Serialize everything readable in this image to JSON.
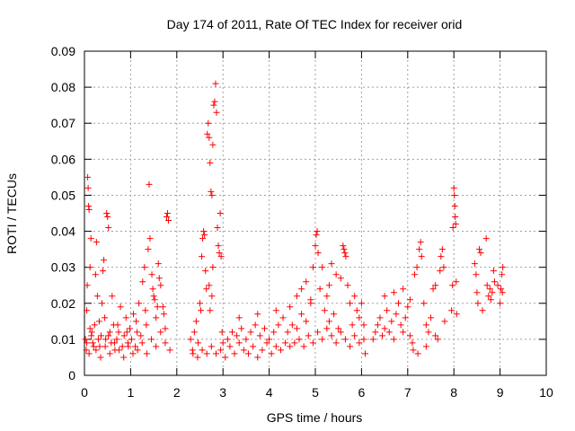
{
  "chart_data": {
    "type": "scatter",
    "title": "Day 174 of 2011, Rate Of TEC Index for receiver orid",
    "xlabel": "GPS time / hours",
    "ylabel": "ROTI / TECUs",
    "xlim": [
      0,
      10
    ],
    "ylim": [
      0,
      0.09
    ],
    "x_ticks": [
      "0",
      "1",
      "2",
      "3",
      "4",
      "5",
      "6",
      "7",
      "8",
      "9",
      "10"
    ],
    "y_ticks": [
      "0",
      "0.01",
      "0.02",
      "0.03",
      "0.04",
      "0.05",
      "0.06",
      "0.07",
      "0.08",
      "0.09"
    ],
    "grid": true,
    "marker": "+",
    "series_color": "#ff0000",
    "series": [
      {
        "name": "ROTI",
        "points": [
          [
            0.02,
            0.01
          ],
          [
            0.04,
            0.007
          ],
          [
            0.05,
            0.018
          ],
          [
            0.06,
            0.025
          ],
          [
            0.07,
            0.055
          ],
          [
            0.08,
            0.052
          ],
          [
            0.09,
            0.047
          ],
          [
            0.1,
            0.046
          ],
          [
            0.12,
            0.03
          ],
          [
            0.14,
            0.038
          ],
          [
            0.16,
            0.012
          ],
          [
            0.18,
            0.009
          ],
          [
            0.2,
            0.008
          ],
          [
            0.22,
            0.014
          ],
          [
            0.24,
            0.028
          ],
          [
            0.26,
            0.037
          ],
          [
            0.28,
            0.022
          ],
          [
            0.3,
            0.01
          ],
          [
            0.33,
            0.008
          ],
          [
            0.36,
            0.011
          ],
          [
            0.38,
            0.02
          ],
          [
            0.4,
            0.029
          ],
          [
            0.42,
            0.032
          ],
          [
            0.44,
            0.016
          ],
          [
            0.46,
            0.01
          ],
          [
            0.48,
            0.045
          ],
          [
            0.5,
            0.044
          ],
          [
            0.52,
            0.041
          ],
          [
            0.55,
            0.012
          ],
          [
            0.58,
            0.009
          ],
          [
            0.6,
            0.022
          ],
          [
            0.63,
            0.014
          ],
          [
            0.66,
            0.007
          ],
          [
            0.7,
            0.01
          ],
          [
            0.74,
            0.012
          ],
          [
            0.78,
            0.019
          ],
          [
            0.82,
            0.008
          ],
          [
            0.86,
            0.011
          ],
          [
            0.9,
            0.016
          ],
          [
            0.94,
            0.009
          ],
          [
            0.98,
            0.013
          ],
          [
            1.02,
            0.01
          ],
          [
            1.06,
            0.017
          ],
          [
            1.1,
            0.008
          ],
          [
            1.14,
            0.012
          ],
          [
            1.18,
            0.02
          ],
          [
            1.22,
            0.011
          ],
          [
            1.26,
            0.026
          ],
          [
            1.3,
            0.03
          ],
          [
            1.34,
            0.014
          ],
          [
            1.38,
            0.035
          ],
          [
            1.4,
            0.053
          ],
          [
            1.42,
            0.038
          ],
          [
            1.46,
            0.028
          ],
          [
            1.5,
            0.022
          ],
          [
            1.55,
            0.016
          ],
          [
            1.6,
            0.031
          ],
          [
            1.65,
            0.025
          ],
          [
            1.7,
            0.019
          ],
          [
            1.75,
            0.013
          ],
          [
            1.78,
            0.044
          ],
          [
            1.8,
            0.045
          ],
          [
            1.82,
            0.043
          ],
          [
            0.05,
            0.009
          ],
          [
            0.1,
            0.006
          ],
          [
            0.15,
            0.011
          ],
          [
            0.25,
            0.007
          ],
          [
            0.35,
            0.005
          ],
          [
            0.45,
            0.008
          ],
          [
            0.55,
            0.006
          ],
          [
            0.65,
            0.009
          ],
          [
            0.75,
            0.007
          ],
          [
            0.85,
            0.005
          ],
          [
            0.95,
            0.008
          ],
          [
            1.05,
            0.006
          ],
          [
            1.15,
            0.007
          ],
          [
            1.25,
            0.009
          ],
          [
            1.35,
            0.006
          ],
          [
            1.45,
            0.01
          ],
          [
            1.55,
            0.008
          ],
          [
            1.65,
            0.012
          ],
          [
            1.75,
            0.009
          ],
          [
            1.85,
            0.007
          ],
          [
            0.12,
            0.013
          ],
          [
            0.32,
            0.015
          ],
          [
            0.52,
            0.011
          ],
          [
            0.72,
            0.014
          ],
          [
            0.92,
            0.012
          ],
          [
            1.12,
            0.015
          ],
          [
            1.32,
            0.018
          ],
          [
            1.52,
            0.021
          ],
          [
            1.72,
            0.017
          ],
          [
            1.62,
            0.027
          ],
          [
            1.48,
            0.024
          ],
          [
            1.58,
            0.019
          ],
          [
            2.3,
            0.01
          ],
          [
            2.34,
            0.007
          ],
          [
            2.38,
            0.012
          ],
          [
            2.42,
            0.015
          ],
          [
            2.46,
            0.009
          ],
          [
            2.5,
            0.02
          ],
          [
            2.52,
            0.018
          ],
          [
            2.54,
            0.033
          ],
          [
            2.56,
            0.038
          ],
          [
            2.58,
            0.04
          ],
          [
            2.6,
            0.039
          ],
          [
            2.62,
            0.029
          ],
          [
            2.64,
            0.024
          ],
          [
            2.66,
            0.067
          ],
          [
            2.68,
            0.07
          ],
          [
            2.7,
            0.066
          ],
          [
            2.72,
            0.059
          ],
          [
            2.74,
            0.051
          ],
          [
            2.76,
            0.05
          ],
          [
            2.78,
            0.064
          ],
          [
            2.8,
            0.075
          ],
          [
            2.82,
            0.076
          ],
          [
            2.84,
            0.081
          ],
          [
            2.86,
            0.073
          ],
          [
            2.88,
            0.041
          ],
          [
            2.9,
            0.036
          ],
          [
            2.92,
            0.034
          ],
          [
            2.94,
            0.045
          ],
          [
            2.96,
            0.033
          ],
          [
            2.98,
            0.012
          ],
          [
            3.0,
            0.009
          ],
          [
            2.72,
            0.018
          ],
          [
            2.78,
            0.03
          ],
          [
            2.7,
            0.025
          ],
          [
            2.76,
            0.022
          ],
          [
            2.35,
            0.006
          ],
          [
            2.45,
            0.005
          ],
          [
            2.55,
            0.007
          ],
          [
            2.65,
            0.006
          ],
          [
            2.75,
            0.008
          ],
          [
            2.85,
            0.006
          ],
          [
            2.95,
            0.007
          ],
          [
            3.05,
            0.005
          ],
          [
            3.15,
            0.008
          ],
          [
            3.25,
            0.006
          ],
          [
            3.35,
            0.009
          ],
          [
            3.45,
            0.007
          ],
          [
            3.55,
            0.006
          ],
          [
            3.65,
            0.008
          ],
          [
            3.75,
            0.005
          ],
          [
            3.85,
            0.007
          ],
          [
            3.95,
            0.009
          ],
          [
            4.05,
            0.006
          ],
          [
            4.15,
            0.008
          ],
          [
            4.25,
            0.007
          ],
          [
            4.35,
            0.009
          ],
          [
            4.45,
            0.008
          ],
          [
            3.1,
            0.01
          ],
          [
            3.2,
            0.012
          ],
          [
            3.3,
            0.011
          ],
          [
            3.4,
            0.013
          ],
          [
            3.5,
            0.01
          ],
          [
            3.6,
            0.012
          ],
          [
            3.7,
            0.014
          ],
          [
            3.8,
            0.011
          ],
          [
            3.9,
            0.013
          ],
          [
            4.0,
            0.01
          ],
          [
            4.1,
            0.012
          ],
          [
            4.2,
            0.014
          ],
          [
            4.3,
            0.016
          ],
          [
            4.4,
            0.012
          ],
          [
            4.5,
            0.014
          ],
          [
            4.6,
            0.013
          ],
          [
            4.7,
            0.017
          ],
          [
            4.8,
            0.015
          ],
          [
            4.9,
            0.02
          ],
          [
            3.35,
            0.016
          ],
          [
            3.75,
            0.017
          ],
          [
            4.15,
            0.018
          ],
          [
            4.45,
            0.019
          ],
          [
            4.55,
            0.009
          ],
          [
            4.65,
            0.01
          ],
          [
            4.75,
            0.008
          ],
          [
            4.85,
            0.011
          ],
          [
            4.95,
            0.009
          ],
          [
            5.05,
            0.012
          ],
          [
            5.15,
            0.01
          ],
          [
            5.25,
            0.013
          ],
          [
            5.35,
            0.011
          ],
          [
            5.45,
            0.009
          ],
          [
            5.55,
            0.012
          ],
          [
            5.65,
            0.01
          ],
          [
            5.75,
            0.008
          ],
          [
            5.85,
            0.011
          ],
          [
            5.95,
            0.009
          ],
          [
            6.05,
            0.01
          ],
          [
            4.6,
            0.022
          ],
          [
            4.7,
            0.024
          ],
          [
            4.8,
            0.026
          ],
          [
            4.9,
            0.021
          ],
          [
            4.95,
            0.03
          ],
          [
            5.0,
            0.036
          ],
          [
            5.02,
            0.039
          ],
          [
            5.04,
            0.04
          ],
          [
            5.06,
            0.034
          ],
          [
            5.1,
            0.024
          ],
          [
            5.15,
            0.03
          ],
          [
            5.2,
            0.018
          ],
          [
            5.25,
            0.022
          ],
          [
            5.3,
            0.015
          ],
          [
            5.4,
            0.017
          ],
          [
            5.5,
            0.013
          ],
          [
            5.55,
            0.027
          ],
          [
            5.6,
            0.036
          ],
          [
            5.62,
            0.035
          ],
          [
            5.64,
            0.034
          ],
          [
            5.66,
            0.033
          ],
          [
            5.7,
            0.025
          ],
          [
            5.75,
            0.02
          ],
          [
            5.8,
            0.014
          ],
          [
            5.85,
            0.022
          ],
          [
            5.9,
            0.018
          ],
          [
            5.95,
            0.016
          ],
          [
            6.0,
            0.02
          ],
          [
            6.05,
            0.014
          ],
          [
            6.08,
            0.006
          ],
          [
            5.3,
            0.025
          ],
          [
            5.45,
            0.028
          ],
          [
            5.35,
            0.031
          ],
          [
            6.25,
            0.01
          ],
          [
            6.3,
            0.012
          ],
          [
            6.35,
            0.014
          ],
          [
            6.4,
            0.016
          ],
          [
            6.45,
            0.011
          ],
          [
            6.5,
            0.013
          ],
          [
            6.55,
            0.018
          ],
          [
            6.6,
            0.012
          ],
          [
            6.65,
            0.015
          ],
          [
            6.7,
            0.01
          ],
          [
            6.75,
            0.017
          ],
          [
            6.8,
            0.02
          ],
          [
            6.85,
            0.014
          ],
          [
            6.9,
            0.012
          ],
          [
            6.95,
            0.016
          ],
          [
            7.0,
            0.019
          ],
          [
            7.05,
            0.011
          ],
          [
            7.1,
            0.009
          ],
          [
            7.15,
            0.028
          ],
          [
            7.2,
            0.03
          ],
          [
            7.25,
            0.035
          ],
          [
            7.28,
            0.037
          ],
          [
            7.3,
            0.033
          ],
          [
            7.35,
            0.02
          ],
          [
            7.4,
            0.014
          ],
          [
            7.45,
            0.012
          ],
          [
            7.5,
            0.016
          ],
          [
            7.55,
            0.024
          ],
          [
            7.6,
            0.025
          ],
          [
            7.65,
            0.01
          ],
          [
            7.7,
            0.029
          ],
          [
            7.72,
            0.033
          ],
          [
            7.75,
            0.035
          ],
          [
            7.78,
            0.03
          ],
          [
            7.8,
            0.015
          ],
          [
            6.5,
            0.022
          ],
          [
            6.7,
            0.023
          ],
          [
            6.9,
            0.024
          ],
          [
            7.05,
            0.021
          ],
          [
            7.12,
            0.007
          ],
          [
            7.22,
            0.006
          ],
          [
            7.4,
            0.008
          ],
          [
            7.6,
            0.011
          ],
          [
            7.95,
            0.018
          ],
          [
            7.97,
            0.025
          ],
          [
            7.98,
            0.041
          ],
          [
            8.0,
            0.052
          ],
          [
            8.01,
            0.05
          ],
          [
            8.02,
            0.047
          ],
          [
            8.03,
            0.044
          ],
          [
            8.04,
            0.042
          ],
          [
            8.05,
            0.026
          ],
          [
            8.06,
            0.017
          ],
          [
            8.45,
            0.031
          ],
          [
            8.48,
            0.028
          ],
          [
            8.5,
            0.023
          ],
          [
            8.52,
            0.02
          ],
          [
            8.55,
            0.035
          ],
          [
            8.58,
            0.034
          ],
          [
            8.62,
            0.018
          ],
          [
            8.7,
            0.038
          ],
          [
            8.72,
            0.025
          ],
          [
            8.75,
            0.022
          ],
          [
            8.78,
            0.024
          ],
          [
            8.8,
            0.021
          ],
          [
            8.83,
            0.023
          ],
          [
            8.86,
            0.029
          ],
          [
            8.88,
            0.026
          ],
          [
            8.95,
            0.025
          ],
          [
            9.0,
            0.02
          ],
          [
            9.02,
            0.024
          ],
          [
            9.04,
            0.028
          ],
          [
            9.06,
            0.03
          ],
          [
            9.05,
            0.023
          ]
        ]
      }
    ]
  }
}
